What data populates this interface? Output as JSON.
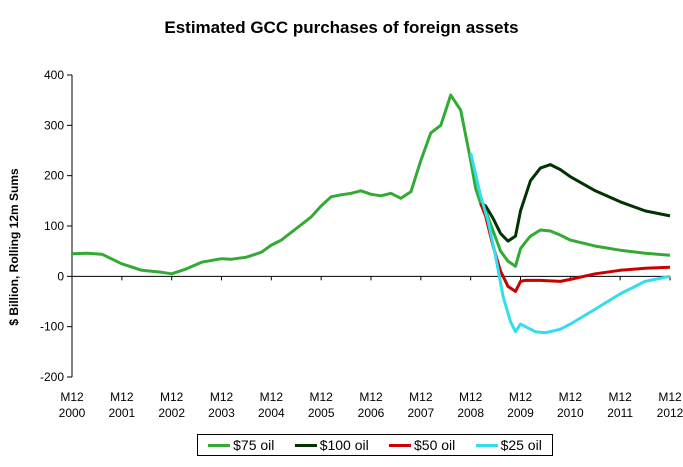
{
  "chart_data": {
    "type": "line",
    "title": "Estimated GCC purchases of foreign assets",
    "ylabel": "$ Billion, Rolling 12m Sums",
    "xlabel": "",
    "ylim": [
      -200,
      400
    ],
    "yticks": [
      -200,
      -100,
      0,
      100,
      200,
      300,
      400
    ],
    "xlim": [
      2000,
      2012
    ],
    "xtick_labels": [
      [
        "M12",
        "2000"
      ],
      [
        "M12",
        "2001"
      ],
      [
        "M12",
        "2002"
      ],
      [
        "M12",
        "2003"
      ],
      [
        "M12",
        "2004"
      ],
      [
        "M12",
        "2005"
      ],
      [
        "M12",
        "2006"
      ],
      [
        "M12",
        "2007"
      ],
      [
        "M12",
        "2008"
      ],
      [
        "M12",
        "2009"
      ],
      [
        "M12",
        "2010"
      ],
      [
        "M12",
        "2011"
      ],
      [
        "M12",
        "2012"
      ]
    ],
    "grid": false,
    "legend": "bottom",
    "series": [
      {
        "name": "$75 oil",
        "color": "#33aa33",
        "x": [
          2000,
          2000.3,
          2000.6,
          2001.0,
          2001.4,
          2001.8,
          2002.0,
          2002.3,
          2002.6,
          2003.0,
          2003.2,
          2003.5,
          2003.8,
          2004.0,
          2004.2,
          2004.5,
          2004.8,
          2005.0,
          2005.2,
          2005.4,
          2005.6,
          2005.8,
          2006.0,
          2006.2,
          2006.4,
          2006.6,
          2006.8,
          2007.0,
          2007.2,
          2007.4,
          2007.6,
          2007.8,
          2008.0,
          2008.1,
          2008.2,
          2008.3,
          2008.45,
          2008.6,
          2008.75,
          2008.9,
          2009.0,
          2009.1,
          2009.2,
          2009.4,
          2009.6,
          2009.8,
          2010.0,
          2010.5,
          2011.0,
          2011.5,
          2012.0
        ],
        "y": [
          45,
          46,
          44,
          25,
          12,
          8,
          5,
          15,
          28,
          35,
          34,
          38,
          48,
          62,
          72,
          95,
          118,
          140,
          158,
          162,
          165,
          170,
          163,
          160,
          165,
          155,
          168,
          230,
          285,
          300,
          360,
          330,
          230,
          175,
          145,
          130,
          90,
          50,
          30,
          20,
          55,
          68,
          80,
          92,
          90,
          82,
          72,
          60,
          52,
          46,
          42
        ]
      },
      {
        "name": "$100 oil",
        "color": "#003300",
        "x": [
          2008.2,
          2008.3,
          2008.45,
          2008.6,
          2008.75,
          2008.9,
          2009.0,
          2009.1,
          2009.2,
          2009.4,
          2009.6,
          2009.8,
          2010.0,
          2010.5,
          2011.0,
          2011.5,
          2012.0
        ],
        "y": [
          145,
          140,
          115,
          85,
          70,
          80,
          130,
          160,
          190,
          215,
          222,
          212,
          198,
          170,
          148,
          130,
          120
        ]
      },
      {
        "name": "$50 oil",
        "color": "#cc0000",
        "x": [
          2008.2,
          2008.3,
          2008.45,
          2008.6,
          2008.75,
          2008.9,
          2009.0,
          2009.1,
          2009.4,
          2009.8,
          2010.0,
          2010.5,
          2011.0,
          2011.5,
          2012.0
        ],
        "y": [
          145,
          120,
          60,
          10,
          -20,
          -30,
          -10,
          -8,
          -8,
          -10,
          -6,
          5,
          12,
          16,
          18
        ]
      },
      {
        "name": "$25 oil",
        "color": "#33ddee",
        "x": [
          2008.0,
          2008.2,
          2008.35,
          2008.5,
          2008.65,
          2008.8,
          2008.9,
          2009.0,
          2009.1,
          2009.3,
          2009.5,
          2009.8,
          2010.0,
          2010.5,
          2011.0,
          2011.5,
          2012.0
        ],
        "y": [
          245,
          160,
          110,
          40,
          -40,
          -90,
          -110,
          -95,
          -100,
          -110,
          -112,
          -105,
          -95,
          -65,
          -35,
          -10,
          0
        ]
      }
    ]
  }
}
